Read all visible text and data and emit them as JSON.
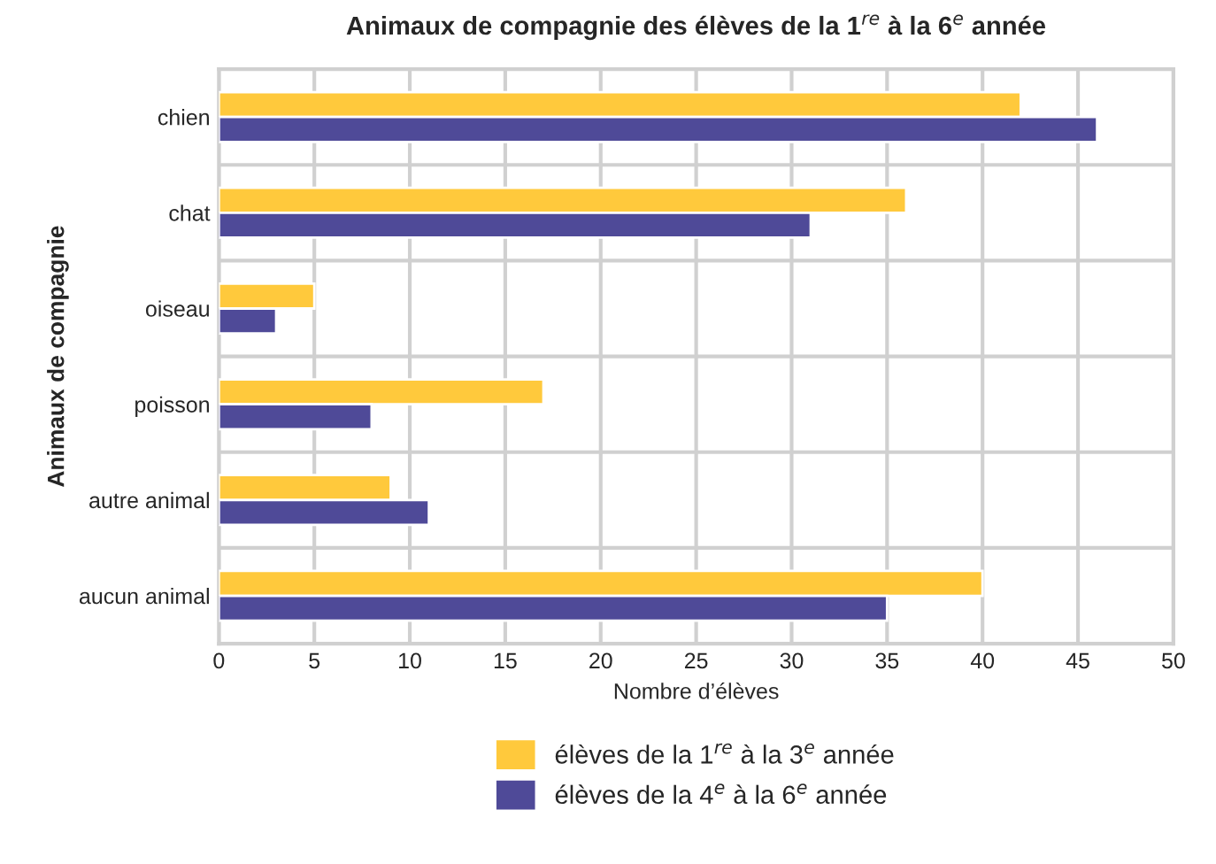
{
  "chart_data": {
    "type": "bar",
    "orientation": "horizontal",
    "title": "Animaux de compagnie des élèves de la 1$^{re}$ à la 6$^{e}$ année",
    "xlabel": "Nombre d’élèves",
    "ylabel": "Animaux de compagnie",
    "categories": [
      "chien",
      "chat",
      "oiseau",
      "poisson",
      "autre animal",
      "aucun animal"
    ],
    "series": [
      {
        "name": "élèves de la 1$^{re}$ à la 3$^{e}$ année",
        "color": "#ffc93c",
        "values": [
          42,
          36,
          5,
          17,
          9,
          40
        ]
      },
      {
        "name": "élèves de la 4$^{e}$ à la 6$^{e}$ année",
        "color": "#4f4a98",
        "values": [
          46,
          31,
          3,
          8,
          11,
          35
        ]
      }
    ],
    "xlim": [
      0,
      50
    ],
    "xticks": [
      0,
      5,
      10,
      15,
      20,
      25,
      30,
      35,
      40,
      45,
      50
    ],
    "grid": true,
    "legend": "bottom"
  }
}
